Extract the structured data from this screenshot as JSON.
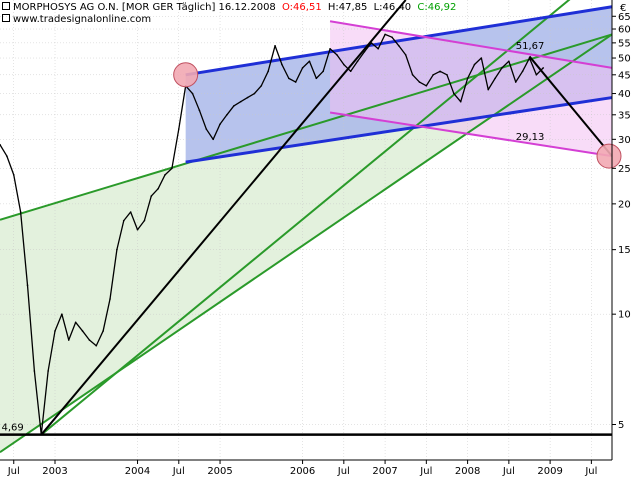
{
  "header": {
    "title": "MORPHOSYS AG O.N. [MOR GER  Täglich] 16.12.2008",
    "open": "O:46,51",
    "high": "H:47,85",
    "low": "L:46,40",
    "close": "C:46,92",
    "source": "www.tradesignalonline.com",
    "currency": "€"
  },
  "colors": {
    "open": "#ff0000",
    "high": "#000000",
    "low": "#000000",
    "close": "#00a000",
    "green_channel": "#2a9a2a",
    "blue_channel": "#1f2fd6",
    "magenta_channel": "#d43fd4",
    "trendline": "#000000",
    "price": "#000000"
  },
  "chart_data": {
    "type": "line",
    "title": "MORPHOSYS AG O.N.",
    "y_scale": "log",
    "ylim": [
      4,
      72
    ],
    "y_ticks": [
      "65",
      "60",
      "55",
      "50",
      "45",
      "40",
      "35",
      "30",
      "25",
      "20",
      "15",
      "10",
      "5"
    ],
    "x_labels": [
      "Jul",
      "2003",
      "2004",
      "Jul",
      "2005",
      "2006",
      "Jul",
      "2007",
      "Jul",
      "2008",
      "Jul",
      "2009",
      "Jul"
    ],
    "annotations": [
      {
        "label": "4,69",
        "value": 4.69
      },
      {
        "label": "51,67",
        "value": 51.67
      },
      {
        "label": "29,13",
        "value": 29.13
      }
    ],
    "series": [
      {
        "x": [
          "2002-05",
          "2002-06",
          "2002-07",
          "2002-08",
          "2002-09",
          "2002-10",
          "2002-11",
          "2002-12",
          "2003-01",
          "2003-02",
          "2003-03",
          "2003-04",
          "2003-05",
          "2003-06",
          "2003-07",
          "2003-08",
          "2003-09",
          "2003-10",
          "2003-11",
          "2003-12",
          "2004-01",
          "2004-02",
          "2004-03",
          "2004-04",
          "2004-05",
          "2004-06",
          "2004-07",
          "2004-08",
          "2004-09",
          "2004-10",
          "2004-11",
          "2004-12",
          "2005-01",
          "2005-02",
          "2005-03",
          "2005-04",
          "2005-05",
          "2005-06",
          "2005-07",
          "2005-08",
          "2005-09",
          "2005-10",
          "2005-11",
          "2005-12",
          "2006-01",
          "2006-02",
          "2006-03",
          "2006-04",
          "2006-05",
          "2006-06",
          "2006-07",
          "2006-08",
          "2006-09",
          "2006-10",
          "2006-11",
          "2006-12",
          "2007-01",
          "2007-02",
          "2007-03",
          "2007-04",
          "2007-05",
          "2007-06",
          "2007-07",
          "2007-08",
          "2007-09",
          "2007-10",
          "2007-11",
          "2007-12",
          "2008-01",
          "2008-02",
          "2008-03",
          "2008-04",
          "2008-05",
          "2008-06",
          "2008-07",
          "2008-08",
          "2008-09",
          "2008-10",
          "2008-11",
          "2008-12"
        ],
        "values": [
          29,
          27,
          24,
          19,
          12,
          7,
          4.69,
          7,
          9,
          10,
          8.5,
          9.5,
          9,
          8.5,
          8.2,
          9,
          11,
          15,
          18,
          19,
          17,
          18,
          21,
          22,
          24,
          25,
          32,
          42,
          40,
          36,
          32,
          30,
          33,
          35,
          37,
          38,
          39,
          40,
          42,
          46,
          54,
          48,
          44,
          43,
          47,
          49,
          44,
          46,
          53,
          51,
          48,
          46,
          49,
          52,
          55,
          53,
          58,
          57,
          54,
          51,
          45,
          43,
          42,
          45,
          46,
          45,
          40,
          38,
          44,
          48,
          50,
          41,
          44,
          47,
          49,
          43,
          46,
          50,
          45,
          47
        ]
      }
    ],
    "lines": [
      {
        "name": "green-channel-upper",
        "from": [
          "2002-05",
          18.1
        ],
        "to": [
          "2009-10",
          58
        ]
      },
      {
        "name": "green-channel-lower",
        "from": [
          "2002-05",
          4.2
        ],
        "to": [
          "2009-10",
          58
        ]
      },
      {
        "name": "green-channel-middle",
        "from": [
          "2002-11",
          4.69
        ],
        "to": [
          "2009-10",
          90
        ]
      },
      {
        "name": "blue-channel-upper",
        "from": [
          "2004-08",
          45
        ],
        "to": [
          "2009-10",
          69
        ]
      },
      {
        "name": "blue-channel-lower",
        "from": [
          "2004-08",
          26
        ],
        "to": [
          "2009-10",
          39
        ]
      },
      {
        "name": "magenta-channel-upper",
        "from": [
          "2006-05",
          63
        ],
        "to": [
          "2009-10",
          47
        ]
      },
      {
        "name": "magenta-channel-lower",
        "from": [
          "2006-05",
          35.5
        ],
        "to": [
          "2009-10",
          27
        ]
      },
      {
        "name": "trendline-up",
        "from": [
          "2002-11",
          4.69
        ],
        "to": [
          "2007-04",
          72
        ]
      },
      {
        "name": "trendline-down",
        "from": [
          "2008-10",
          50.5
        ],
        "to": [
          "2009-10",
          27
        ]
      },
      {
        "name": "support-line",
        "from": [
          "2002-05",
          4.69
        ],
        "to": [
          "2009-10",
          4.69
        ]
      }
    ],
    "grid": true,
    "legend": "none"
  }
}
